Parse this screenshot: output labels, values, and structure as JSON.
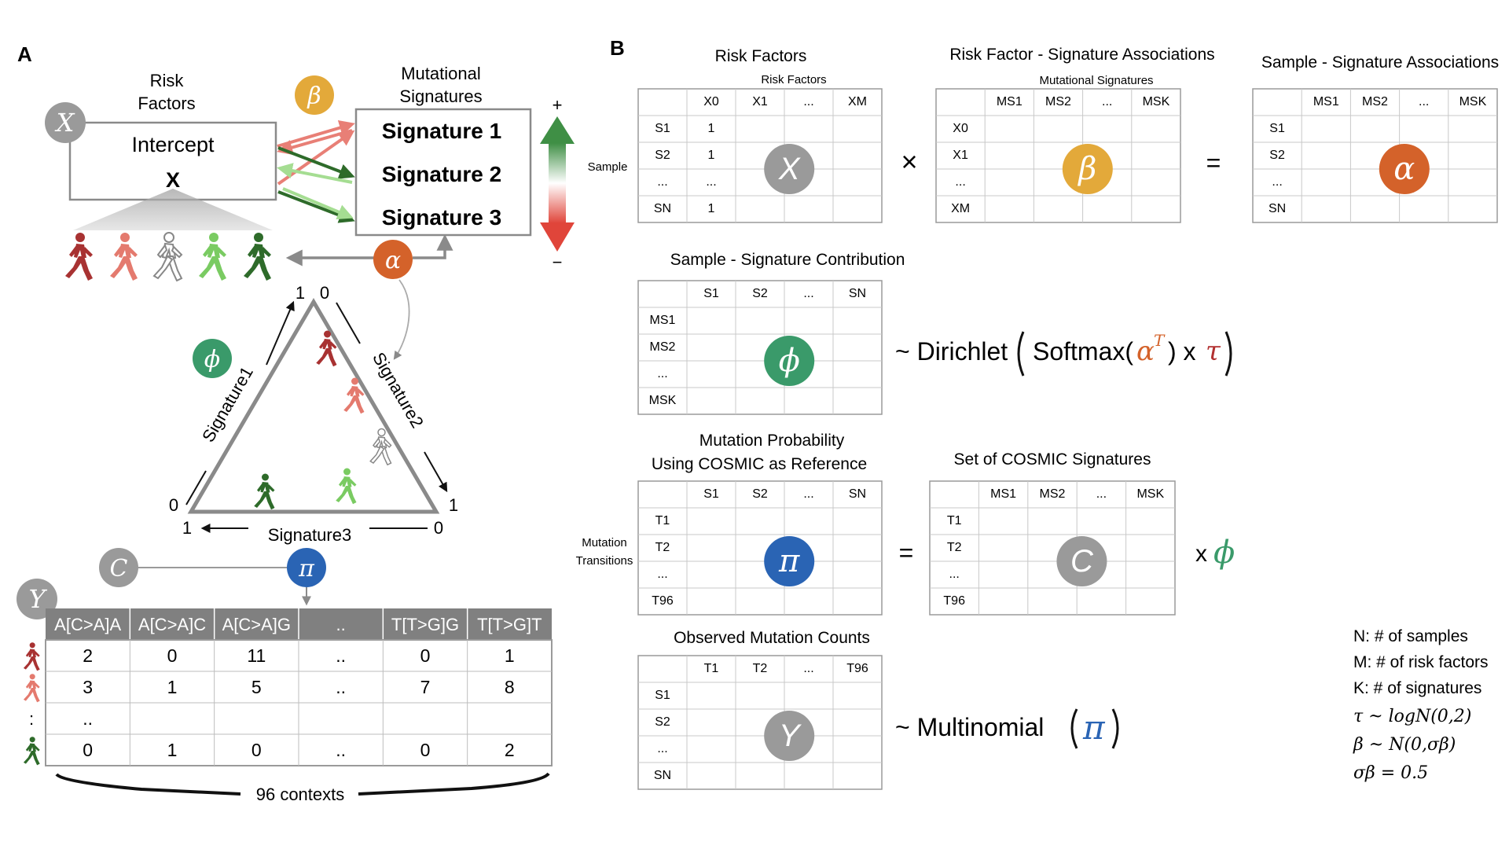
{
  "panel_a": {
    "label": "A",
    "risk_factors_line1": "Risk",
    "risk_factors_line2": "Factors",
    "mut_sig_line1": "Mutational",
    "mut_sig_line2": "Signatures",
    "intercept_line1": "Intercept",
    "intercept_line2": "X",
    "signatures": [
      "Signature 1",
      "Signature 2",
      "Signature 3"
    ],
    "plus": "+",
    "minus": "−",
    "nodes": {
      "x": "X",
      "beta": "β",
      "alpha": "α",
      "phi": "ϕ",
      "c": "C",
      "pi": "π",
      "y": "Y"
    },
    "triangle": {
      "side1": "Signature1",
      "side2": "Signature2",
      "side3": "Signature3",
      "tick_top_left": "1",
      "tick_top_right": "0",
      "tick_left_bottom": "0",
      "tick_right_bottom": "1",
      "tick_bottom_left": "1",
      "tick_bottom_right": "0"
    },
    "table": {
      "headers": [
        "A[C>A]A",
        "A[C>A]C",
        "A[C>A]G",
        "..",
        "T[T>G]G",
        "T[T>G]T"
      ],
      "rows": [
        [
          "2",
          "0",
          "11",
          "..",
          "0",
          "1"
        ],
        [
          "3",
          "1",
          "5",
          "..",
          "7",
          "8"
        ],
        [
          "..",
          "",
          "",
          "",
          "",
          ""
        ],
        [
          "0",
          "1",
          "0",
          "..",
          "0",
          "2"
        ]
      ],
      "row_ellipsis": ":",
      "footer": "96 contexts"
    }
  },
  "panel_b": {
    "label": "B",
    "risk_factors": {
      "title": "Risk Factors",
      "subtitle": "Risk Factors",
      "row_axis": "Sample",
      "cols": [
        "X0",
        "X1",
        "...",
        "XM"
      ],
      "rows": [
        "S1",
        "S2",
        "...",
        "SN"
      ],
      "first_col": [
        "1",
        "1",
        "...",
        "1"
      ],
      "symbol": "X"
    },
    "times": "×",
    "rf_sig": {
      "title": "Risk Factor - Signature Associations",
      "subtitle": "Mutational Signatures",
      "cols": [
        "MS1",
        "MS2",
        "...",
        "MSK"
      ],
      "rows": [
        "X0",
        "X1",
        "...",
        "XM"
      ],
      "symbol": "β"
    },
    "equals": "=",
    "sample_sig": {
      "title": "Sample - Signature Associations",
      "cols": [
        "MS1",
        "MS2",
        "...",
        "MSK"
      ],
      "rows": [
        "S1",
        "S2",
        "...",
        "SN"
      ],
      "symbol": "α"
    },
    "contribution": {
      "title": "Sample - Signature Contribution",
      "cols": [
        "S1",
        "S2",
        "...",
        "SN"
      ],
      "rows": [
        "MS1",
        "MS2",
        "...",
        "MSK"
      ],
      "symbol": "ϕ",
      "formula_prefix": "~ Dirichlet",
      "formula_softmax": "Softmax(",
      "formula_alpha": "α",
      "formula_T": "T",
      "formula_close": ") x",
      "formula_tau": "τ"
    },
    "mut_prob": {
      "title_line1": "Mutation Probability",
      "title_line2": "Using COSMIC as Reference",
      "row_axis_line1": "Mutation",
      "row_axis_line2": "Transitions",
      "cols": [
        "S1",
        "S2",
        "...",
        "SN"
      ],
      "rows": [
        "T1",
        "T2",
        "...",
        "T96"
      ],
      "symbol": "π"
    },
    "cosmic": {
      "title": "Set of COSMIC Signatures",
      "cols": [
        "MS1",
        "MS2",
        "...",
        "MSK"
      ],
      "rows": [
        "T1",
        "T2",
        "...",
        "T96"
      ],
      "symbol": "C",
      "times_phi_prefix": "x",
      "times_phi": "ϕ"
    },
    "observed": {
      "title": "Observed Mutation Counts",
      "cols": [
        "T1",
        "T2",
        "...",
        "T96"
      ],
      "rows": [
        "S1",
        "S2",
        "...",
        "SN"
      ],
      "symbol": "Y",
      "formula_prefix": "~ Multinomial",
      "formula_pi": "π"
    },
    "legend": [
      "N: # of samples",
      "M: # of risk factors",
      "K: # of signatures"
    ],
    "priors": {
      "tau": "τ ~ logN(0,2)",
      "beta": "β ~ N(0,σβ)",
      "sigma": "σβ = 0.5"
    }
  },
  "colors": {
    "gray_node": "#9a9a9a",
    "beta": "#e3a93a",
    "alpha": "#d4622a",
    "phi": "#3a9a6a",
    "pi": "#2a64b4",
    "dark_red": "#a83232",
    "salmon": "#e47a6e",
    "light_green": "#7acb62",
    "dark_green": "#2e6b2a"
  }
}
